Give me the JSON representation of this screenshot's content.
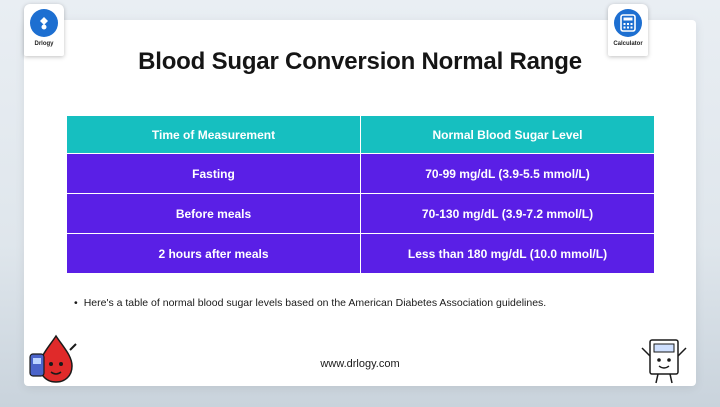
{
  "header": {
    "title": "Blood Sugar Conversion Normal Range",
    "left_badge_label": "Drlogy",
    "right_badge_label": "Calculator"
  },
  "table": {
    "headers": [
      "Time of Measurement",
      "Normal Blood Sugar Level"
    ],
    "rows": [
      [
        "Fasting",
        "70-99 mg/dL (3.9-5.5 mmol/L)"
      ],
      [
        "Before meals",
        "70-130 mg/dL (3.9-7.2 mmol/L)"
      ],
      [
        "2 hours after meals",
        "Less than 180 mg/dL (10.0 mmol/L)"
      ]
    ]
  },
  "note": {
    "text": "Here's a table of normal blood sugar levels based on the American Diabetes Association guidelines."
  },
  "footer": {
    "url": "www.drlogy.com"
  },
  "colors": {
    "header_teal": "#16bfc0",
    "row_purple": "#5a1fe6",
    "badge_blue": "#1d6fd1"
  }
}
